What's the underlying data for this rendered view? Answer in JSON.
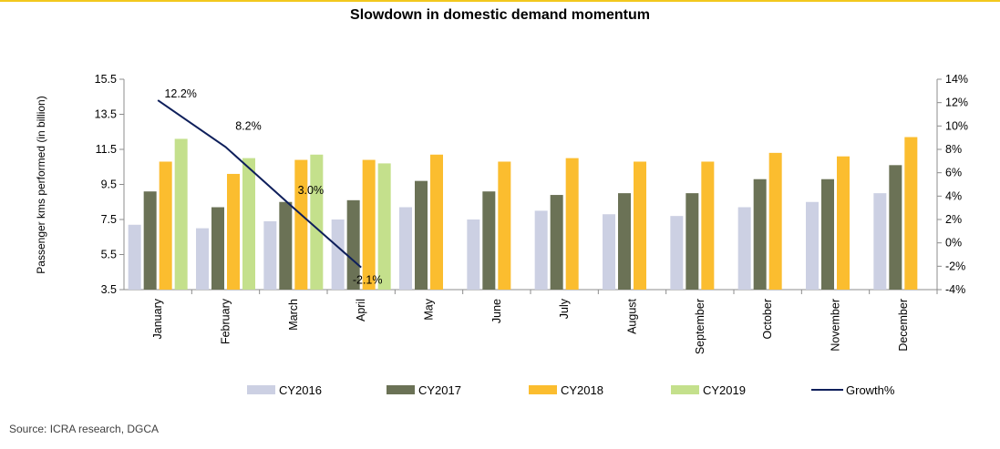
{
  "title": "Slowdown in domestic demand momentum",
  "source": "Source: ICRA research, DGCA",
  "chart_data": {
    "type": "bar",
    "title": "Slowdown in domestic demand momentum",
    "ylabel": "Passenger kms performed (in billion)",
    "xlabel": "",
    "categories": [
      "January",
      "February",
      "March",
      "April",
      "May",
      "June",
      "July",
      "August",
      "September",
      "October",
      "November",
      "December"
    ],
    "ylim": [
      3.5,
      15.5
    ],
    "yticks": [
      "15.5",
      "13.5",
      "11.5",
      "9.5",
      "7.5",
      "5.5",
      "3.5"
    ],
    "y2lim": [
      -4,
      14
    ],
    "y2ticks": [
      "14%",
      "12%",
      "10%",
      "8%",
      "6%",
      "4%",
      "2%",
      "0%",
      "-2%",
      "-4%"
    ],
    "series": [
      {
        "name": "CY2016",
        "type": "bar",
        "color": "#ccd0e3",
        "values": [
          7.2,
          7.0,
          7.4,
          7.5,
          8.2,
          7.5,
          8.0,
          7.8,
          7.7,
          8.2,
          8.5,
          9.0
        ]
      },
      {
        "name": "CY2017",
        "type": "bar",
        "color": "#6b7256",
        "values": [
          9.1,
          8.2,
          8.5,
          8.6,
          9.7,
          9.1,
          8.9,
          9.0,
          9.0,
          9.8,
          9.8,
          10.6
        ]
      },
      {
        "name": "CY2018",
        "type": "bar",
        "color": "#fbbd2f",
        "values": [
          10.8,
          10.1,
          10.9,
          10.9,
          11.2,
          10.8,
          11.0,
          10.8,
          10.8,
          11.3,
          11.1,
          12.2
        ]
      },
      {
        "name": "CY2019",
        "type": "bar",
        "color": "#c4e08c",
        "values": [
          12.1,
          11.0,
          11.2,
          10.7,
          null,
          null,
          null,
          null,
          null,
          null,
          null,
          null
        ]
      },
      {
        "name": "Growth%",
        "type": "line",
        "axis": "right",
        "color": "#0e1f5b",
        "values": [
          12.2,
          8.2,
          3.0,
          -2.1,
          null,
          null,
          null,
          null,
          null,
          null,
          null,
          null
        ],
        "labels": [
          "12.2%",
          "8.2%",
          "3.0%",
          "-2.1%"
        ]
      }
    ],
    "legend": {
      "position": "bottom"
    },
    "grid": false
  }
}
